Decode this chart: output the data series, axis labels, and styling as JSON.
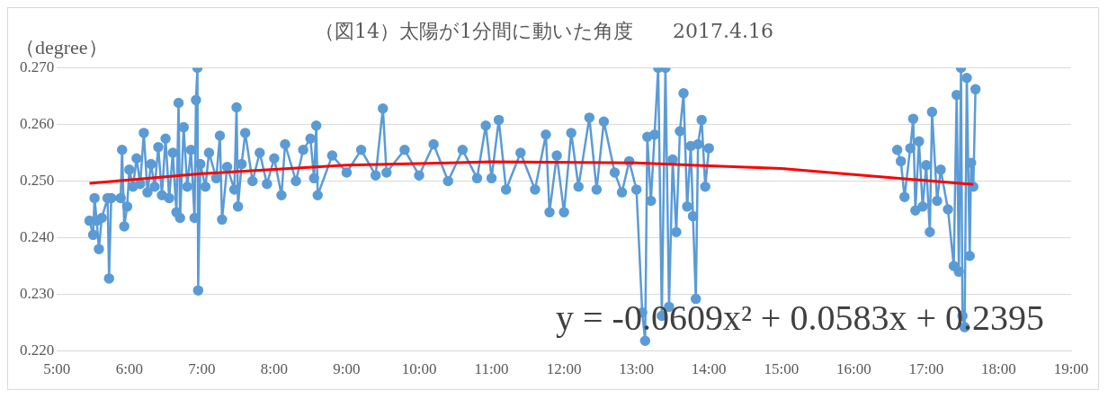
{
  "chart_data": {
    "type": "line",
    "title": "（図14）太陽が1分間に動いた角度　　2017.4.16",
    "ylabel": "（degree）",
    "annotations": [
      "y = -0.0609x² + 0.0583x + 0.2395"
    ],
    "xlim": [
      5,
      19
    ],
    "xticks": [
      {
        "value": 5,
        "label": "5:00"
      },
      {
        "value": 6,
        "label": "6:00"
      },
      {
        "value": 7,
        "label": "7:00"
      },
      {
        "value": 8,
        "label": "8:00"
      },
      {
        "value": 9,
        "label": "9:00"
      },
      {
        "value": 10,
        "label": "10:00"
      },
      {
        "value": 11,
        "label": "11:00"
      },
      {
        "value": 12,
        "label": "12:00"
      },
      {
        "value": 13,
        "label": "13:00"
      },
      {
        "value": 14,
        "label": "14:00"
      },
      {
        "value": 15,
        "label": "15:00"
      },
      {
        "value": 16,
        "label": "16:00"
      },
      {
        "value": 17,
        "label": "17:00"
      },
      {
        "value": 18,
        "label": "18:00"
      },
      {
        "value": 19,
        "label": "19:00"
      }
    ],
    "ylim": [
      0.22,
      0.27
    ],
    "yticks": [
      {
        "value": 0.22,
        "label": "0.220"
      },
      {
        "value": 0.23,
        "label": "0.230"
      },
      {
        "value": 0.24,
        "label": "0.240"
      },
      {
        "value": 0.25,
        "label": "0.250"
      },
      {
        "value": 0.26,
        "label": "0.260"
      },
      {
        "value": 0.27,
        "label": "0.270"
      }
    ],
    "grid": "y",
    "legend": false,
    "marker": "circle",
    "line_style": "solid",
    "series": [
      {
        "color": "#5b9bd5",
        "x": [
          5.45,
          5.5,
          5.52,
          5.55,
          5.58,
          5.62,
          5.7,
          5.72,
          5.75,
          5.88,
          5.9,
          5.93,
          5.97,
          6.0,
          6.05,
          6.1,
          6.15,
          6.2,
          6.25,
          6.3,
          6.35,
          6.4,
          6.45,
          6.5,
          6.55,
          6.6,
          6.65,
          6.68,
          6.7,
          6.75,
          6.8,
          6.85,
          6.9,
          6.92,
          6.94,
          6.95,
          6.98,
          7.05,
          7.1,
          7.2,
          7.25,
          7.28,
          7.35,
          7.45,
          7.48,
          7.5,
          7.55,
          7.6,
          7.7,
          7.8,
          7.9,
          8.0,
          8.1,
          8.15,
          8.3,
          8.4,
          8.5,
          8.55,
          8.58,
          8.6,
          8.8,
          9.0,
          9.2,
          9.4,
          9.5,
          9.55,
          9.8,
          10.0,
          10.2,
          10.4,
          10.6,
          10.8,
          10.92,
          11.0,
          11.1,
          11.2,
          11.4,
          11.6,
          11.75,
          11.8,
          11.9,
          12.0,
          12.1,
          12.2,
          12.35,
          12.45,
          12.55,
          12.7,
          12.8,
          12.9,
          13.0,
          13.08,
          13.12,
          13.15,
          13.2,
          13.25,
          13.3,
          13.35,
          13.4,
          13.45,
          13.5,
          13.55,
          13.6,
          13.65,
          13.7,
          13.75,
          13.78,
          13.82,
          13.85,
          13.9,
          13.95,
          14.0,
          15.3,
          16.6,
          16.65,
          16.7,
          16.78,
          16.82,
          16.85,
          16.9,
          16.95,
          17.0,
          17.05,
          17.08,
          17.15,
          17.2,
          17.3,
          17.38,
          17.42,
          17.45,
          17.48,
          17.5,
          17.53,
          17.56,
          17.6,
          17.62,
          17.65,
          17.68
        ],
        "values": [
          0.243,
          0.2405,
          0.247,
          0.243,
          0.238,
          0.2435,
          0.247,
          0.2328,
          0.247,
          0.247,
          0.2555,
          0.242,
          0.2455,
          0.252,
          0.249,
          0.254,
          0.2495,
          0.2585,
          0.248,
          0.253,
          0.249,
          0.256,
          0.2475,
          0.2575,
          0.247,
          0.255,
          0.2445,
          0.2638,
          0.2435,
          0.2595,
          0.249,
          0.2555,
          0.2435,
          0.2643,
          0.27,
          0.2307,
          0.253,
          0.249,
          0.255,
          0.2505,
          0.258,
          0.2432,
          0.2525,
          0.2485,
          0.263,
          0.2455,
          0.253,
          0.2585,
          0.25,
          0.255,
          0.2495,
          0.254,
          0.2475,
          0.2565,
          0.25,
          0.2555,
          0.2575,
          0.2505,
          0.2598,
          0.2475,
          0.2545,
          0.2515,
          0.2555,
          0.251,
          0.2628,
          0.2515,
          0.2555,
          0.251,
          0.2565,
          0.25,
          0.2555,
          0.2505,
          0.2598,
          0.2505,
          0.2608,
          0.2485,
          0.255,
          0.2485,
          0.2582,
          0.2445,
          0.2545,
          0.2445,
          0.2585,
          0.249,
          0.2612,
          0.2485,
          0.2605,
          0.2515,
          0.248,
          0.2535,
          0.2485,
          0.2268,
          0.2218,
          0.2578,
          0.2465,
          0.2582,
          0.27,
          0.2262,
          0.27,
          0.2278,
          0.2538,
          0.241,
          0.2588,
          0.2655,
          0.2455,
          0.2562,
          0.2438,
          0.2292,
          0.2565,
          0.2608,
          0.249,
          0.2558,
          null,
          0.2555,
          0.2535,
          0.2472,
          0.2558,
          0.261,
          0.2448,
          0.257,
          0.2455,
          0.2528,
          0.241,
          0.2622,
          0.2465,
          0.252,
          0.245,
          0.235,
          0.2652,
          0.234,
          0.27,
          0.2262,
          0.2242,
          0.2682,
          0.2368,
          0.2532,
          0.249,
          0.2662
        ]
      },
      {
        "type": "line",
        "color": "#ff0000",
        "marker": "none",
        "x": [
          5.45,
          7,
          9,
          11,
          13,
          15,
          17.65
        ],
        "values": [
          0.2496,
          0.2513,
          0.2528,
          0.2534,
          0.2532,
          0.2522,
          0.2494
        ]
      }
    ]
  }
}
